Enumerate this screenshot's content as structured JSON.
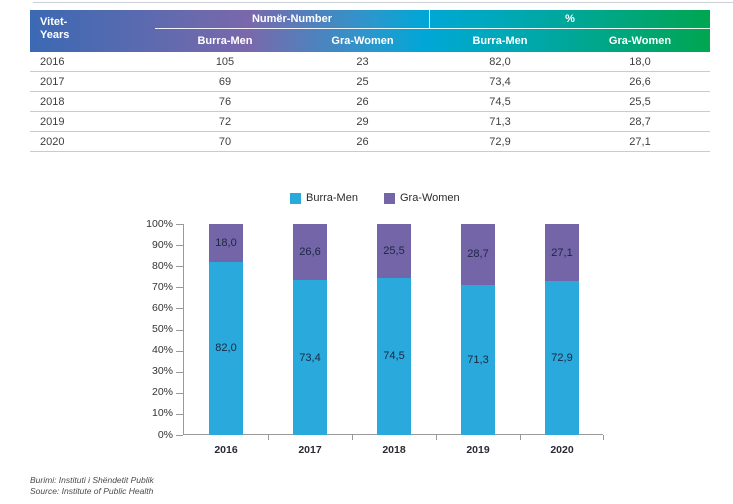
{
  "table": {
    "corner": {
      "line1": "Vitet-",
      "line2": "Years"
    },
    "groups": [
      "Numër-Number",
      "%"
    ],
    "subheaders": [
      "Burra-Men",
      "Gra-Women",
      "Burra-Men",
      "Gra-Women"
    ],
    "rows": [
      [
        "2016",
        "105",
        "23",
        "82,0",
        "18,0"
      ],
      [
        "2017",
        "69",
        "25",
        "73,4",
        "26,6"
      ],
      [
        "2018",
        "76",
        "26",
        "74,5",
        "25,5"
      ],
      [
        "2019",
        "72",
        "29",
        "71,3",
        "28,7"
      ],
      [
        "2020",
        "70",
        "26",
        "72,9",
        "27,1"
      ]
    ]
  },
  "chart_data": {
    "type": "bar",
    "stacked": true,
    "categories": [
      "2016",
      "2017",
      "2018",
      "2019",
      "2020"
    ],
    "series": [
      {
        "name": "Burra-Men",
        "color": "#29a9dc",
        "values": [
          82.0,
          73.4,
          74.5,
          71.3,
          72.9
        ],
        "labels": [
          "82,0",
          "73,4",
          "74,5",
          "71,3",
          "72,9"
        ]
      },
      {
        "name": "Gra-Women",
        "color": "#7464a8",
        "values": [
          18.0,
          26.6,
          25.5,
          28.7,
          27.1
        ],
        "labels": [
          "18,0",
          "26,6",
          "25,5",
          "28,7",
          "27,1"
        ]
      }
    ],
    "title": "",
    "xlabel": "",
    "ylabel": "",
    "ylim": [
      0,
      100
    ],
    "y_ticks": [
      "0%",
      "10%",
      "20%",
      "30%",
      "40%",
      "50%",
      "60%",
      "70%",
      "80%",
      "90%",
      "100%"
    ],
    "legend_position": "top",
    "grid": false
  },
  "footer": {
    "line1": "Burimi: Instituti i Shëndetit Publik",
    "line2": "Source: Institute of Public Health"
  },
  "colors": {
    "men": "#29a9dc",
    "women": "#7464a8",
    "header_gradient_start": "#3b69b3",
    "header_gradient_purple": "#7a68ab",
    "header_gradient_cyan": "#00a7d6",
    "header_gradient_end": "#00a650",
    "axis": "#999999",
    "row_line": "#cbcbcb",
    "bar_label_text": "#1c2742"
  }
}
